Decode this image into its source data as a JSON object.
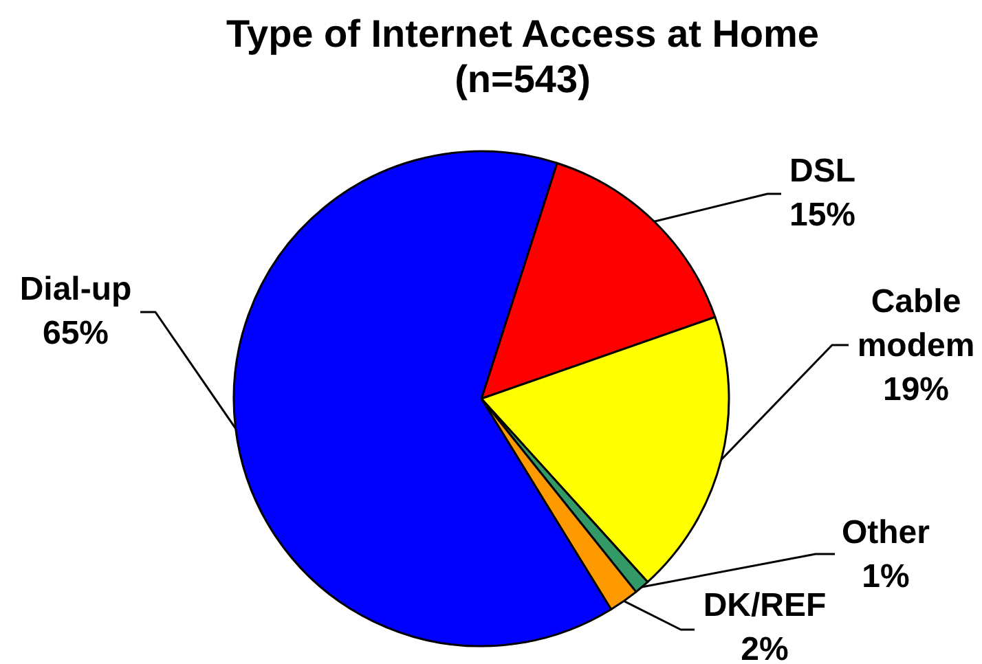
{
  "chart_data": {
    "type": "pie",
    "title": "Type of Internet Access at Home",
    "subtitle": "(n=543)",
    "categories": [
      "DSL",
      "Cable modem",
      "Other",
      "DK/REF",
      "Dial-up"
    ],
    "values": [
      15,
      19,
      1,
      2,
      65
    ],
    "colors": [
      "#ff0000",
      "#ffff00",
      "#339966",
      "#ff9900",
      "#0000ff"
    ],
    "value_labels": [
      "15%",
      "19%",
      "1%",
      "2%",
      "65%"
    ]
  }
}
